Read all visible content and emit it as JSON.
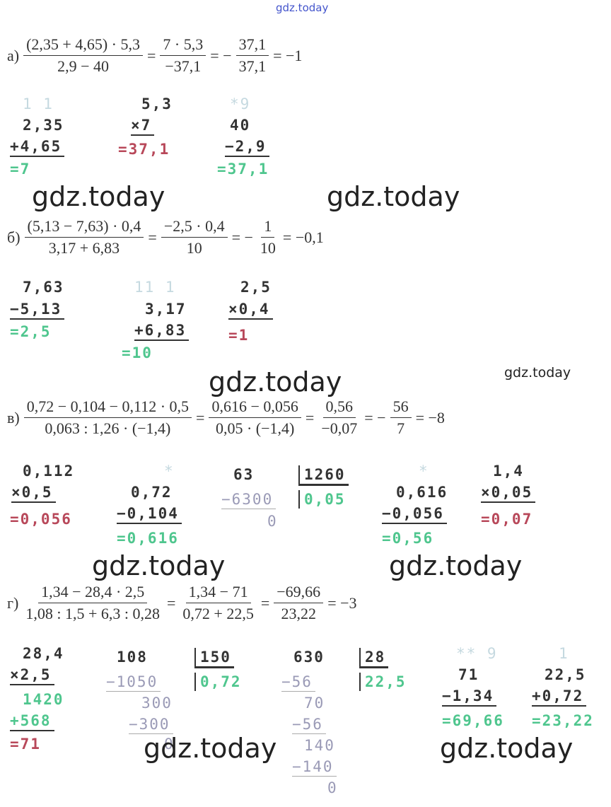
{
  "site_mark": "gdz.today",
  "watermarks": [
    "gdz.today",
    "gdz.today",
    "gdz.today",
    "gdz.today",
    "gdz.today",
    "gdz.today",
    "gdz.today",
    "gdz.today"
  ],
  "parts": [
    {
      "label": "а)",
      "expression": [
        {
          "num": "(2,35 + 4,65) · 5,3",
          "den": "2,9 − 40"
        },
        "=",
        {
          "num": "7 · 5,3",
          "den": "−37,1"
        },
        "= −",
        {
          "num": "37,1",
          "den": "37,1"
        },
        "= −1"
      ],
      "calculations": [
        [
          "1 1",
          "2,35",
          "+4,65",
          "=7"
        ],
        [
          "5,3",
          "×7",
          "=37,1"
        ],
        [
          "*9",
          "40",
          "−2,9",
          "=37,1"
        ]
      ]
    },
    {
      "label": "б)",
      "expression": [
        {
          "num": "(5,13 − 7,63) · 0,4",
          "den": "3,17 + 6,83"
        },
        "=",
        {
          "num": "−2,5 · 0,4",
          "den": "10"
        },
        "= −",
        {
          "num": "1",
          "den": "10"
        },
        "= −0,1"
      ],
      "calculations": [
        [
          "7,63",
          "−5,13",
          "=2,5"
        ],
        [
          "11 1",
          "3,17",
          "+6,83",
          "=10"
        ],
        [
          "2,5",
          "×0,4",
          "=1"
        ]
      ]
    },
    {
      "label": "в)",
      "expression": [
        {
          "num": "0,72 − 0,104 − 0,112 · 0,5",
          "den": "0,063 : 1,26 · (−1,4)"
        },
        "=",
        {
          "num": "0,616 − 0,056",
          "den": "0,05 · (−1,4)"
        },
        "=",
        {
          "num": "0,56",
          "den": "−0,07"
        },
        "= −",
        {
          "num": "56",
          "den": "7"
        },
        "= −8"
      ],
      "calculations": [
        [
          "0,112",
          "×0,5",
          "=0,056"
        ],
        [
          "*",
          "0,72",
          "−0,104",
          "=0,616"
        ],
        [
          "63",
          "1260",
          "−6300",
          "0,05",
          "0"
        ],
        [
          "*",
          "0,616",
          "−0,056",
          "=0,56"
        ],
        [
          "1,4",
          "×0,05",
          "=0,07"
        ]
      ]
    },
    {
      "label": "г)",
      "expression": [
        {
          "num": "1,34 − 28,4 · 2,5",
          "den": "1,08 : 1,5 + 6,3 : 0,28"
        },
        "=",
        {
          "num": "1,34 − 71",
          "den": "0,72 + 22,5"
        },
        "=",
        {
          "num": "−69,66",
          "den": "23,22"
        },
        "= −3"
      ],
      "calculations": [
        [
          "28,4",
          "×2,5",
          "1420",
          "+568",
          "=71"
        ],
        [
          "108",
          "150",
          "−1050",
          "0,72",
          "300",
          "−300",
          "0"
        ],
        [
          "630",
          "28",
          "−56",
          "22,5",
          "70",
          "−56",
          "140",
          "−140",
          "0"
        ],
        [
          "** 9",
          "71",
          "−1,34",
          "=69,66"
        ],
        [
          "1",
          "22,5",
          "+0,72",
          "=23,22"
        ]
      ]
    }
  ]
}
